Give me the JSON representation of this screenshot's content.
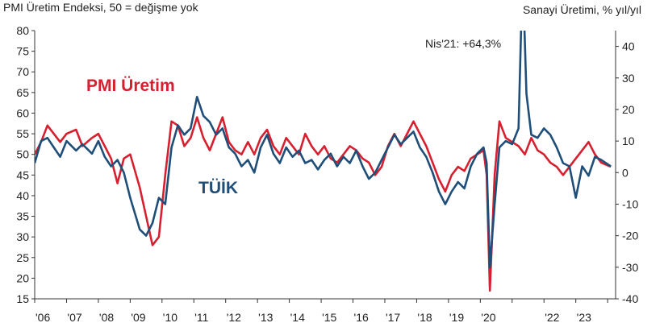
{
  "chart_data": {
    "type": "line",
    "left_axis_title": "PMI Üretim Endeksi, 50 = değişme yok",
    "right_axis_title": "Sanayi Üretimi, % yıl/yıl",
    "left_axis": {
      "min": 15,
      "max": 80,
      "ticks": [
        80,
        75,
        70,
        65,
        60,
        55,
        50,
        45,
        40,
        35,
        30,
        25,
        20,
        15
      ]
    },
    "right_axis": {
      "min": -40,
      "max": 45,
      "ticks": [
        40,
        30,
        20,
        10,
        0,
        -10,
        -20,
        -30,
        -40
      ]
    },
    "x_axis": {
      "min": 2006.0,
      "max": 2024.25,
      "tick_labels": [
        "'06",
        "'07",
        "'08",
        "'09",
        "'10",
        "'11",
        "'12",
        "'13",
        "'14",
        "'15",
        "'16",
        "'17",
        "'18",
        "'19",
        "'20",
        "'22",
        "'23"
      ],
      "tick_years": [
        2006,
        2007,
        2008,
        2009,
        2010,
        2011,
        2012,
        2013,
        2014,
        2015,
        2016,
        2017,
        2018,
        2019,
        2020,
        2022,
        2023
      ]
    },
    "grid": false,
    "annotation": "Nis'21: +64,3%",
    "series": [
      {
        "name": "PMI Üretim",
        "color": "#d7202f",
        "axis": "left",
        "points": [
          [
            2006.0,
            50
          ],
          [
            2006.2,
            53
          ],
          [
            2006.4,
            57
          ],
          [
            2006.6,
            55
          ],
          [
            2006.8,
            53
          ],
          [
            2007.0,
            55
          ],
          [
            2007.3,
            56
          ],
          [
            2007.5,
            52
          ],
          [
            2007.8,
            54
          ],
          [
            2008.0,
            55
          ],
          [
            2008.2,
            52
          ],
          [
            2008.4,
            49
          ],
          [
            2008.6,
            43
          ],
          [
            2008.8,
            49
          ],
          [
            2009.0,
            50
          ],
          [
            2009.3,
            42
          ],
          [
            2009.5,
            35
          ],
          [
            2009.7,
            28
          ],
          [
            2009.9,
            30
          ],
          [
            2010.1,
            45
          ],
          [
            2010.3,
            58
          ],
          [
            2010.5,
            57
          ],
          [
            2010.7,
            52
          ],
          [
            2010.9,
            54
          ],
          [
            2011.1,
            59
          ],
          [
            2011.3,
            54
          ],
          [
            2011.5,
            51
          ],
          [
            2011.7,
            55
          ],
          [
            2011.9,
            59
          ],
          [
            2012.1,
            53
          ],
          [
            2012.3,
            51
          ],
          [
            2012.5,
            50
          ],
          [
            2012.7,
            53
          ],
          [
            2012.9,
            50
          ],
          [
            2013.1,
            54
          ],
          [
            2013.3,
            56
          ],
          [
            2013.5,
            52
          ],
          [
            2013.7,
            50
          ],
          [
            2013.9,
            54
          ],
          [
            2014.1,
            52
          ],
          [
            2014.3,
            50
          ],
          [
            2014.5,
            55
          ],
          [
            2014.7,
            52
          ],
          [
            2014.9,
            50
          ],
          [
            2015.1,
            52
          ],
          [
            2015.3,
            49
          ],
          [
            2015.5,
            48
          ],
          [
            2015.7,
            50
          ],
          [
            2015.9,
            52
          ],
          [
            2016.1,
            51
          ],
          [
            2016.3,
            49
          ],
          [
            2016.5,
            48
          ],
          [
            2016.7,
            45
          ],
          [
            2016.9,
            47
          ],
          [
            2017.1,
            52
          ],
          [
            2017.3,
            55
          ],
          [
            2017.5,
            52
          ],
          [
            2017.7,
            55
          ],
          [
            2017.9,
            58
          ],
          [
            2018.1,
            55
          ],
          [
            2018.3,
            52
          ],
          [
            2018.5,
            48
          ],
          [
            2018.7,
            44
          ],
          [
            2018.9,
            41
          ],
          [
            2019.1,
            45
          ],
          [
            2019.3,
            47
          ],
          [
            2019.5,
            46
          ],
          [
            2019.7,
            49
          ],
          [
            2019.9,
            50
          ],
          [
            2020.1,
            51
          ],
          [
            2020.2,
            45
          ],
          [
            2020.3,
            17
          ],
          [
            2020.45,
            45
          ],
          [
            2020.6,
            58
          ],
          [
            2020.8,
            54
          ],
          [
            2021.0,
            53
          ],
          [
            2021.2,
            52
          ],
          [
            2021.4,
            50
          ],
          [
            2021.6,
            54
          ],
          [
            2021.8,
            51
          ],
          [
            2022.0,
            50
          ],
          [
            2022.2,
            48
          ],
          [
            2022.4,
            47
          ],
          [
            2022.6,
            45
          ],
          [
            2022.8,
            47
          ],
          [
            2023.0,
            49
          ],
          [
            2023.2,
            51
          ],
          [
            2023.4,
            53
          ],
          [
            2023.6,
            50
          ],
          [
            2023.8,
            48
          ],
          [
            2024.1,
            47
          ]
        ]
      },
      {
        "name": "TÜİK",
        "color": "#1f4e79",
        "axis": "right",
        "points": [
          [
            2006.0,
            3
          ],
          [
            2006.2,
            10
          ],
          [
            2006.4,
            11
          ],
          [
            2006.6,
            8
          ],
          [
            2006.8,
            5
          ],
          [
            2007.0,
            10
          ],
          [
            2007.3,
            7
          ],
          [
            2007.5,
            9
          ],
          [
            2007.8,
            6
          ],
          [
            2008.0,
            10
          ],
          [
            2008.2,
            5
          ],
          [
            2008.4,
            2
          ],
          [
            2008.6,
            4
          ],
          [
            2008.8,
            0
          ],
          [
            2009.0,
            -8
          ],
          [
            2009.3,
            -18
          ],
          [
            2009.5,
            -20
          ],
          [
            2009.7,
            -16
          ],
          [
            2009.9,
            -8
          ],
          [
            2010.1,
            -10
          ],
          [
            2010.3,
            8
          ],
          [
            2010.5,
            15
          ],
          [
            2010.7,
            12
          ],
          [
            2010.9,
            14
          ],
          [
            2011.1,
            24
          ],
          [
            2011.3,
            18
          ],
          [
            2011.5,
            16
          ],
          [
            2011.7,
            12
          ],
          [
            2011.9,
            14
          ],
          [
            2012.1,
            8
          ],
          [
            2012.3,
            6
          ],
          [
            2012.5,
            2
          ],
          [
            2012.7,
            4
          ],
          [
            2012.9,
            0
          ],
          [
            2013.1,
            8
          ],
          [
            2013.3,
            12
          ],
          [
            2013.5,
            6
          ],
          [
            2013.7,
            3
          ],
          [
            2013.9,
            8
          ],
          [
            2014.1,
            5
          ],
          [
            2014.3,
            7
          ],
          [
            2014.5,
            3
          ],
          [
            2014.7,
            4
          ],
          [
            2014.9,
            1
          ],
          [
            2015.1,
            4
          ],
          [
            2015.3,
            6
          ],
          [
            2015.5,
            2
          ],
          [
            2015.7,
            5
          ],
          [
            2015.9,
            3
          ],
          [
            2016.1,
            7
          ],
          [
            2016.3,
            2
          ],
          [
            2016.5,
            -2
          ],
          [
            2016.7,
            0
          ],
          [
            2016.9,
            4
          ],
          [
            2017.1,
            8
          ],
          [
            2017.3,
            12
          ],
          [
            2017.5,
            9
          ],
          [
            2017.7,
            11
          ],
          [
            2017.9,
            13
          ],
          [
            2018.1,
            8
          ],
          [
            2018.3,
            5
          ],
          [
            2018.5,
            0
          ],
          [
            2018.7,
            -6
          ],
          [
            2018.9,
            -10
          ],
          [
            2019.1,
            -6
          ],
          [
            2019.3,
            -3
          ],
          [
            2019.5,
            -5
          ],
          [
            2019.7,
            2
          ],
          [
            2019.9,
            6
          ],
          [
            2020.1,
            8
          ],
          [
            2020.2,
            3
          ],
          [
            2020.3,
            -30
          ],
          [
            2020.45,
            -10
          ],
          [
            2020.6,
            8
          ],
          [
            2020.8,
            10
          ],
          [
            2021.0,
            9
          ],
          [
            2021.2,
            14
          ],
          [
            2021.33,
            64.3
          ],
          [
            2021.45,
            25
          ],
          [
            2021.6,
            12
          ],
          [
            2021.8,
            11
          ],
          [
            2022.0,
            14
          ],
          [
            2022.2,
            12
          ],
          [
            2022.4,
            8
          ],
          [
            2022.6,
            3
          ],
          [
            2022.8,
            2
          ],
          [
            2023.0,
            -8
          ],
          [
            2023.2,
            2
          ],
          [
            2023.4,
            -1
          ],
          [
            2023.6,
            5
          ],
          [
            2023.8,
            4
          ],
          [
            2024.1,
            2
          ]
        ]
      }
    ],
    "series_labels": [
      {
        "text": "PMI Üretim",
        "color": "#d7202f"
      },
      {
        "text": "TÜİK",
        "color": "#1f4e79"
      }
    ]
  }
}
